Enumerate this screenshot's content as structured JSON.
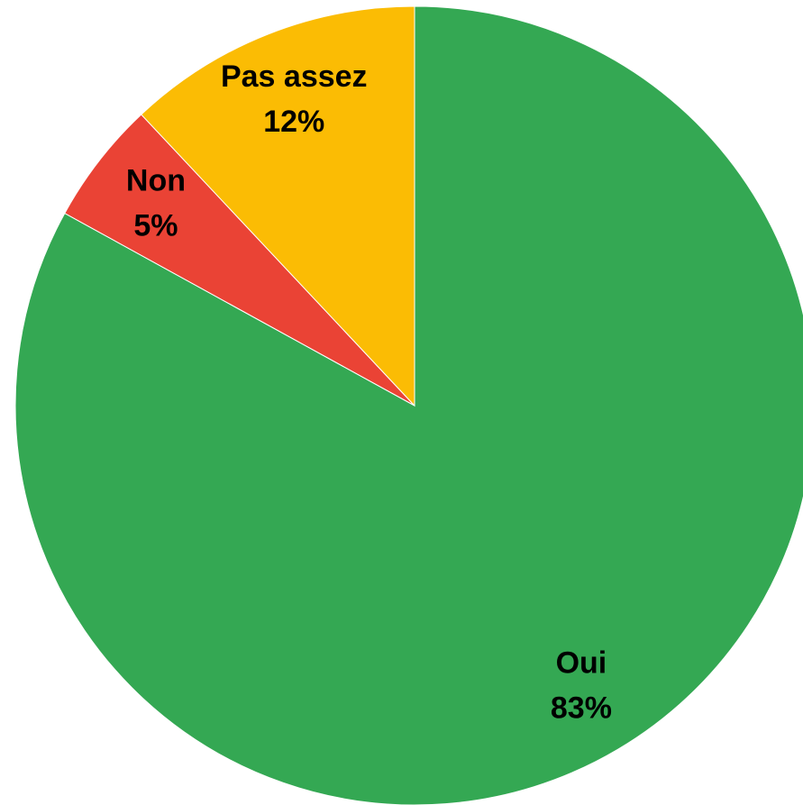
{
  "chart_data": {
    "type": "pie",
    "categories": [
      "Oui",
      "Non",
      "Pas assez"
    ],
    "values": [
      83,
      5,
      12
    ],
    "value_labels": [
      "83%",
      "5%",
      "12%"
    ],
    "colors": [
      "#34a853",
      "#ea4335",
      "#fbbc04"
    ]
  }
}
